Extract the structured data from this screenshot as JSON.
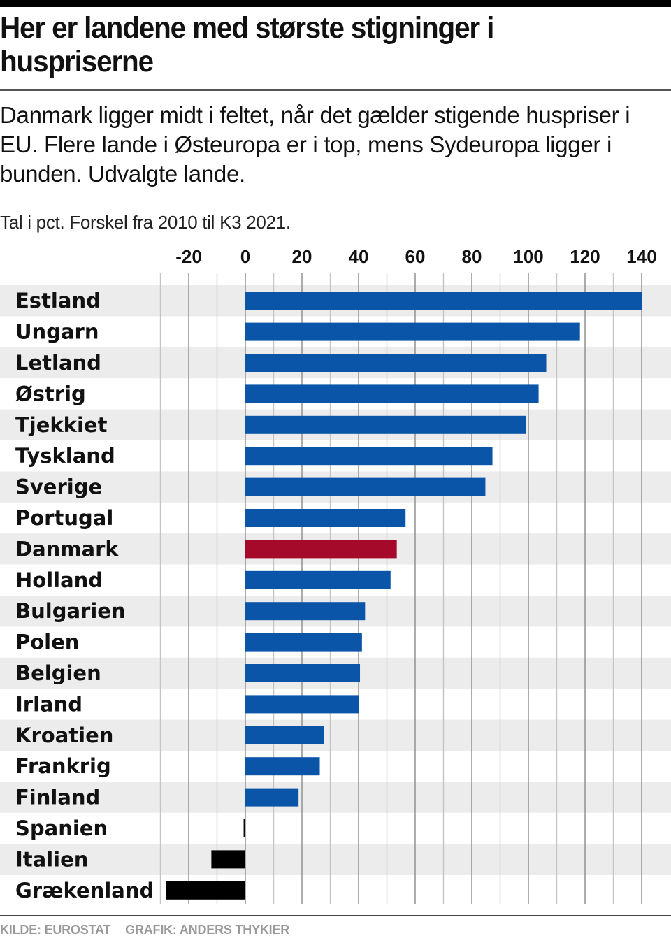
{
  "chart_data": {
    "type": "bar",
    "orientation": "horizontal",
    "title": "Her er landene med største stigninger i huspriserne",
    "subtitle": "Danmark ligger midt i feltet, når det gælder stigende huspriser i EU. Flere lande i Østeuropa er i top, mens Sydeuropa ligger i bunden. Udvalgte lande.",
    "unit_note": "Tal i pct. Forskel fra 2010 til K3 2021.",
    "xlabel": "",
    "ylabel": "",
    "xlim": [
      -30,
      140
    ],
    "x_ticks": [
      -20,
      0,
      20,
      40,
      60,
      80,
      100,
      120,
      140
    ],
    "x_tick_labels": [
      "-20",
      "0",
      "20",
      "40",
      "60",
      "80",
      "100",
      "120",
      "140"
    ],
    "grid": true,
    "grid_step": 10,
    "categories": [
      "Estland",
      "Ungarn",
      "Letland",
      "Østrig",
      "Tjekkiet",
      "Tyskland",
      "Sverige",
      "Portugal",
      "Danmark",
      "Holland",
      "Bulgarien",
      "Polen",
      "Belgien",
      "Irland",
      "Kroatien",
      "Frankrig",
      "Finland",
      "Spanien",
      "Italien",
      "Grækenland"
    ],
    "values": [
      140.2,
      118.2,
      106.3,
      103.6,
      99.1,
      87.3,
      84.8,
      56.6,
      53.5,
      51.3,
      42.3,
      41.2,
      40.5,
      40.2,
      27.8,
      26.3,
      18.8,
      -0.6,
      -12.0,
      -27.9
    ],
    "highlight": "Danmark",
    "colors": {
      "positive": "#0a55a8",
      "highlight": "#a50a2b",
      "negative": "#000000",
      "band": "#ececec",
      "grid_major": "#8a8a8a",
      "grid_minor": "#c4c4c4"
    }
  },
  "footer": {
    "source": "KILDE: EUROSTAT",
    "credit": "GRAFIK: ANDERS THYKIER"
  }
}
